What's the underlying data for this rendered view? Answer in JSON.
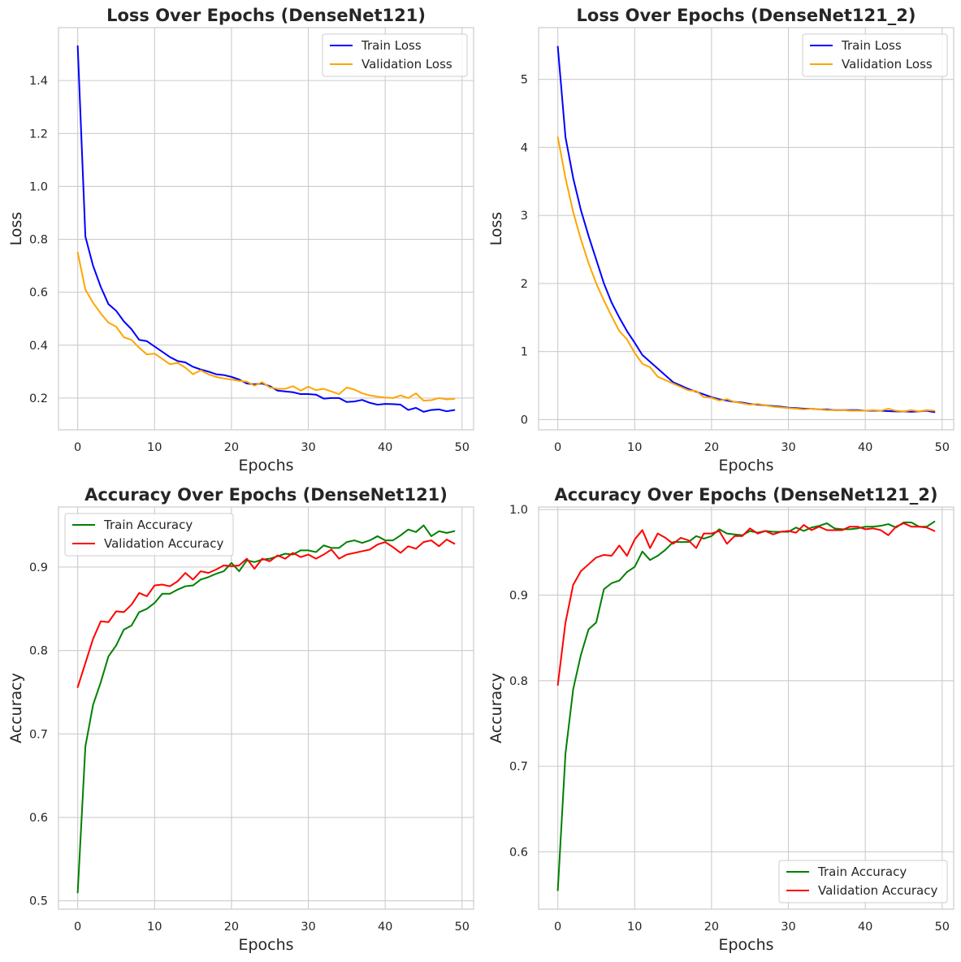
{
  "chart_data": [
    {
      "type": "line",
      "title": "Loss Over Epochs (DenseNet121)",
      "xlabel": "Epochs",
      "ylabel": "Loss",
      "xlim": [
        -2.5,
        51.5
      ],
      "ylim": [
        0.08,
        1.6
      ],
      "xticks": [
        0,
        10,
        20,
        30,
        40,
        50
      ],
      "yticks": [
        0.2,
        0.4,
        0.6,
        0.8,
        1.0,
        1.2,
        1.4
      ],
      "ytick_labels": [
        "0.2",
        "0.4",
        "0.6",
        "0.8",
        "1.0",
        "1.2",
        "1.4"
      ],
      "legend": "top-right",
      "series": [
        {
          "name": "Train Loss",
          "color": "#0000ff",
          "values": [
            1.53,
            0.81,
            0.7,
            0.62,
            0.555,
            0.53,
            0.49,
            0.46,
            0.42,
            0.415,
            0.395,
            0.375,
            0.355,
            0.34,
            0.335,
            0.318,
            0.308,
            0.3,
            0.29,
            0.287,
            0.28,
            0.27,
            0.255,
            0.252,
            0.255,
            0.245,
            0.228,
            0.225,
            0.222,
            0.215,
            0.215,
            0.213,
            0.198,
            0.2,
            0.2,
            0.185,
            0.187,
            0.193,
            0.182,
            0.175,
            0.178,
            0.177,
            0.175,
            0.155,
            0.163,
            0.148,
            0.155,
            0.157,
            0.15,
            0.155
          ]
        },
        {
          "name": "Validation Loss",
          "color": "#ffa500",
          "values": [
            0.75,
            0.61,
            0.56,
            0.52,
            0.485,
            0.47,
            0.43,
            0.42,
            0.39,
            0.365,
            0.368,
            0.348,
            0.328,
            0.333,
            0.315,
            0.29,
            0.305,
            0.29,
            0.28,
            0.274,
            0.27,
            0.265,
            0.262,
            0.247,
            0.26,
            0.24,
            0.235,
            0.235,
            0.245,
            0.228,
            0.243,
            0.23,
            0.235,
            0.225,
            0.215,
            0.24,
            0.232,
            0.218,
            0.21,
            0.205,
            0.202,
            0.2,
            0.21,
            0.2,
            0.218,
            0.19,
            0.192,
            0.2,
            0.195,
            0.197
          ]
        }
      ]
    },
    {
      "type": "line",
      "title": "Loss Over Epochs (DenseNet121_2)",
      "xlabel": "Epochs",
      "ylabel": "Loss",
      "xlim": [
        -2.5,
        51.5
      ],
      "ylim": [
        -0.15,
        5.76
      ],
      "xticks": [
        0,
        10,
        20,
        30,
        40,
        50
      ],
      "yticks": [
        0,
        1,
        2,
        3,
        4,
        5
      ],
      "ytick_labels": [
        "0",
        "1",
        "2",
        "3",
        "4",
        "5"
      ],
      "legend": "top-right",
      "series": [
        {
          "name": "Train Loss",
          "color": "#0000ff",
          "values": [
            5.48,
            4.15,
            3.55,
            3.08,
            2.7,
            2.35,
            2.0,
            1.72,
            1.5,
            1.3,
            1.13,
            0.95,
            0.85,
            0.75,
            0.65,
            0.55,
            0.5,
            0.45,
            0.41,
            0.37,
            0.33,
            0.3,
            0.28,
            0.26,
            0.25,
            0.23,
            0.22,
            0.21,
            0.2,
            0.19,
            0.175,
            0.17,
            0.16,
            0.16,
            0.15,
            0.15,
            0.14,
            0.14,
            0.14,
            0.14,
            0.13,
            0.13,
            0.13,
            0.125,
            0.12,
            0.12,
            0.115,
            0.12,
            0.13,
            0.11
          ]
        },
        {
          "name": "Validation Loss",
          "color": "#ffa500",
          "values": [
            4.15,
            3.55,
            3.05,
            2.65,
            2.3,
            2.0,
            1.75,
            1.52,
            1.3,
            1.18,
            0.98,
            0.82,
            0.77,
            0.63,
            0.58,
            0.53,
            0.48,
            0.43,
            0.42,
            0.33,
            0.32,
            0.28,
            0.3,
            0.26,
            0.24,
            0.22,
            0.23,
            0.21,
            0.19,
            0.18,
            0.17,
            0.16,
            0.15,
            0.16,
            0.15,
            0.14,
            0.14,
            0.14,
            0.13,
            0.13,
            0.13,
            0.14,
            0.13,
            0.16,
            0.13,
            0.12,
            0.14,
            0.12,
            0.14,
            0.13
          ]
        }
      ]
    },
    {
      "type": "line",
      "title": "Accuracy Over Epochs (DenseNet121)",
      "xlabel": "Epochs",
      "ylabel": "Accuracy",
      "xlim": [
        -2.5,
        51.5
      ],
      "ylim": [
        0.49,
        0.972
      ],
      "xticks": [
        0,
        10,
        20,
        30,
        40,
        50
      ],
      "yticks": [
        0.5,
        0.6,
        0.7,
        0.8,
        0.9
      ],
      "ytick_labels": [
        "0.5",
        "0.6",
        "0.7",
        "0.8",
        "0.9"
      ],
      "legend": "top-left",
      "series": [
        {
          "name": "Train Accuracy",
          "color": "#008000",
          "values": [
            0.51,
            0.685,
            0.735,
            0.762,
            0.793,
            0.806,
            0.825,
            0.83,
            0.846,
            0.85,
            0.857,
            0.868,
            0.868,
            0.873,
            0.877,
            0.878,
            0.885,
            0.888,
            0.892,
            0.895,
            0.905,
            0.895,
            0.908,
            0.906,
            0.909,
            0.91,
            0.913,
            0.916,
            0.915,
            0.92,
            0.92,
            0.918,
            0.926,
            0.923,
            0.923,
            0.93,
            0.932,
            0.929,
            0.932,
            0.937,
            0.932,
            0.932,
            0.938,
            0.945,
            0.942,
            0.95,
            0.937,
            0.943,
            0.941,
            0.943
          ]
        },
        {
          "name": "Validation Accuracy",
          "color": "#ff0000",
          "values": [
            0.756,
            0.785,
            0.814,
            0.835,
            0.834,
            0.847,
            0.846,
            0.855,
            0.869,
            0.865,
            0.878,
            0.879,
            0.877,
            0.883,
            0.893,
            0.885,
            0.895,
            0.893,
            0.897,
            0.902,
            0.901,
            0.902,
            0.91,
            0.898,
            0.91,
            0.907,
            0.914,
            0.91,
            0.917,
            0.912,
            0.915,
            0.91,
            0.915,
            0.921,
            0.91,
            0.915,
            0.917,
            0.919,
            0.921,
            0.927,
            0.93,
            0.924,
            0.917,
            0.925,
            0.922,
            0.93,
            0.932,
            0.925,
            0.933,
            0.928
          ]
        }
      ]
    },
    {
      "type": "line",
      "title": "Accuracy Over Epochs (DenseNet121_2)",
      "xlabel": "Epochs",
      "ylabel": "Accuracy",
      "xlim": [
        -2.5,
        51.5
      ],
      "ylim": [
        0.533,
        1.003
      ],
      "xticks": [
        0,
        10,
        20,
        30,
        40,
        50
      ],
      "yticks": [
        0.6,
        0.7,
        0.8,
        0.9,
        1.0
      ],
      "ytick_labels": [
        "0.6",
        "0.7",
        "0.8",
        "0.9",
        "1.0"
      ],
      "legend": "bottom-right",
      "series": [
        {
          "name": "Train Accuracy",
          "color": "#008000",
          "values": [
            0.555,
            0.715,
            0.79,
            0.83,
            0.86,
            0.868,
            0.907,
            0.914,
            0.917,
            0.927,
            0.933,
            0.951,
            0.941,
            0.946,
            0.953,
            0.962,
            0.962,
            0.962,
            0.969,
            0.966,
            0.969,
            0.977,
            0.972,
            0.971,
            0.97,
            0.975,
            0.973,
            0.975,
            0.974,
            0.974,
            0.974,
            0.979,
            0.975,
            0.979,
            0.981,
            0.984,
            0.978,
            0.977,
            0.977,
            0.978,
            0.98,
            0.98,
            0.981,
            0.983,
            0.979,
            0.985,
            0.985,
            0.98,
            0.98,
            0.986
          ]
        },
        {
          "name": "Validation Accuracy",
          "color": "#ff0000",
          "values": [
            0.795,
            0.868,
            0.912,
            0.928,
            0.936,
            0.944,
            0.947,
            0.946,
            0.958,
            0.946,
            0.965,
            0.976,
            0.955,
            0.972,
            0.967,
            0.96,
            0.967,
            0.964,
            0.955,
            0.972,
            0.972,
            0.975,
            0.96,
            0.969,
            0.969,
            0.978,
            0.972,
            0.975,
            0.971,
            0.974,
            0.975,
            0.973,
            0.982,
            0.976,
            0.98,
            0.976,
            0.976,
            0.976,
            0.98,
            0.98,
            0.977,
            0.978,
            0.976,
            0.97,
            0.98,
            0.984,
            0.98,
            0.98,
            0.979,
            0.975
          ]
        }
      ]
    }
  ]
}
